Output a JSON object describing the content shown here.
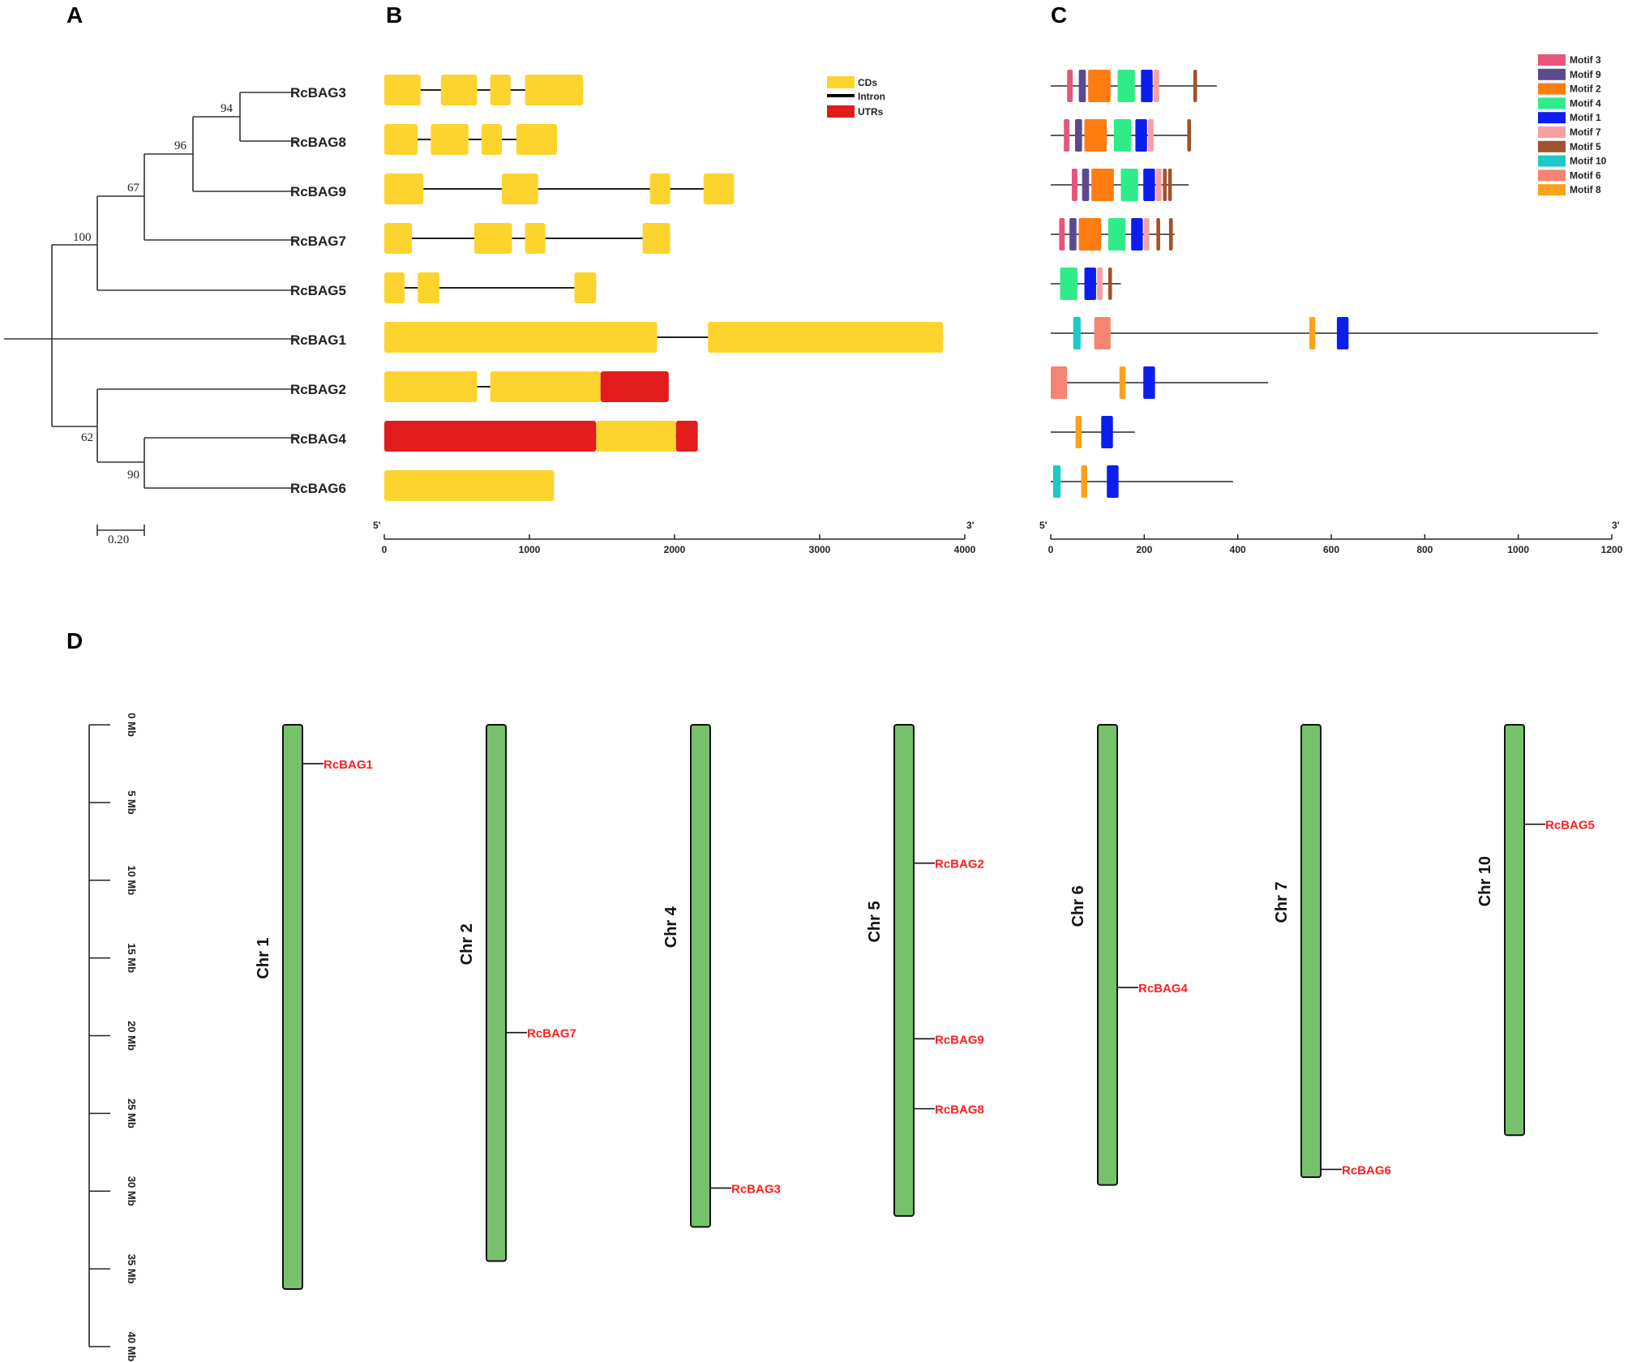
{
  "panels": {
    "a": "A",
    "b": "B",
    "c": "C",
    "d": "D"
  },
  "colors": {
    "cds": "#fdd42e",
    "utr": "#e21c1c",
    "intron": "#000000",
    "chromosome": "#77c16c",
    "gene_label": "#ff1f1f"
  },
  "chart_data": [
    {
      "type": "tree",
      "panel": "A",
      "title": "Phylogenetic tree",
      "leaves": [
        "RcBAG3",
        "RcBAG8",
        "RcBAG9",
        "RcBAG7",
        "RcBAG5",
        "RcBAG1",
        "RcBAG2",
        "RcBAG4",
        "RcBAG6"
      ],
      "bootstrap": [
        "94",
        "96",
        "67",
        "100",
        "62",
        "90"
      ],
      "scale_bar": "0.20"
    },
    {
      "type": "gene-structure",
      "panel": "B",
      "xlim": [
        0,
        4000
      ],
      "ticks": [
        0,
        1000,
        2000,
        3000,
        4000
      ],
      "end5": "5'",
      "end3": "3'",
      "legend": [
        {
          "label": "CDs",
          "kind": "cds"
        },
        {
          "label": "Intron",
          "kind": "intron"
        },
        {
          "label": "UTRs",
          "kind": "utr"
        }
      ],
      "genes": [
        {
          "name": "RcBAG3",
          "length": 1370,
          "features": [
            {
              "kind": "cds",
              "start": 0,
              "end": 250
            },
            {
              "kind": "cds",
              "start": 390,
              "end": 640
            },
            {
              "kind": "cds",
              "start": 730,
              "end": 870
            },
            {
              "kind": "cds",
              "start": 970,
              "end": 1370
            }
          ]
        },
        {
          "name": "RcBAG8",
          "length": 1190,
          "features": [
            {
              "kind": "cds",
              "start": 0,
              "end": 230
            },
            {
              "kind": "cds",
              "start": 320,
              "end": 580
            },
            {
              "kind": "cds",
              "start": 670,
              "end": 810
            },
            {
              "kind": "cds",
              "start": 910,
              "end": 1190
            }
          ]
        },
        {
          "name": "RcBAG9",
          "length": 2410,
          "features": [
            {
              "kind": "cds",
              "start": 0,
              "end": 270
            },
            {
              "kind": "cds",
              "start": 810,
              "end": 1060
            },
            {
              "kind": "cds",
              "start": 1830,
              "end": 1970
            },
            {
              "kind": "cds",
              "start": 2200,
              "end": 2410
            }
          ]
        },
        {
          "name": "RcBAG7",
          "length": 1970,
          "features": [
            {
              "kind": "cds",
              "start": 0,
              "end": 190
            },
            {
              "kind": "cds",
              "start": 620,
              "end": 880
            },
            {
              "kind": "cds",
              "start": 970,
              "end": 1110
            },
            {
              "kind": "cds",
              "start": 1780,
              "end": 1970
            }
          ]
        },
        {
          "name": "RcBAG5",
          "length": 1460,
          "features": [
            {
              "kind": "cds",
              "start": 0,
              "end": 140
            },
            {
              "kind": "cds",
              "start": 230,
              "end": 380
            },
            {
              "kind": "cds",
              "start": 1310,
              "end": 1460
            }
          ]
        },
        {
          "name": "RcBAG1",
          "length": 3850,
          "features": [
            {
              "kind": "cds",
              "start": 0,
              "end": 1880
            },
            {
              "kind": "cds",
              "start": 2230,
              "end": 3850
            }
          ]
        },
        {
          "name": "RcBAG2",
          "length": 1960,
          "features": [
            {
              "kind": "cds",
              "start": 0,
              "end": 640
            },
            {
              "kind": "cds",
              "start": 730,
              "end": 1490
            },
            {
              "kind": "utr",
              "start": 1490,
              "end": 1960
            }
          ]
        },
        {
          "name": "RcBAG4",
          "length": 2160,
          "features": [
            {
              "kind": "utr",
              "start": 0,
              "end": 1460
            },
            {
              "kind": "cds",
              "start": 1460,
              "end": 2010
            },
            {
              "kind": "utr",
              "start": 2010,
              "end": 2160
            }
          ]
        },
        {
          "name": "RcBAG6",
          "length": 1170,
          "features": [
            {
              "kind": "cds",
              "start": 0,
              "end": 1170
            }
          ]
        }
      ]
    },
    {
      "type": "motif",
      "panel": "C",
      "xlim": [
        0,
        1200
      ],
      "ticks": [
        0,
        200,
        400,
        600,
        800,
        1000,
        1200
      ],
      "end5": "5'",
      "end3": "3'",
      "legend": [
        {
          "label": "Motif 3",
          "color": "#e8557a"
        },
        {
          "label": "Motif 9",
          "color": "#5a4a8e"
        },
        {
          "label": "Motif 2",
          "color": "#ff7c11"
        },
        {
          "label": "Motif 4",
          "color": "#2fec88"
        },
        {
          "label": "Motif 1",
          "color": "#0b1eee"
        },
        {
          "label": "Motif 7",
          "color": "#f7a0a4"
        },
        {
          "label": "Motif 5",
          "color": "#a0522d"
        },
        {
          "label": "Motif 10",
          "color": "#1ec8c8"
        },
        {
          "label": "Motif 6",
          "color": "#f68472"
        },
        {
          "label": "Motif 8",
          "color": "#fca11c"
        }
      ],
      "proteins": [
        {
          "name": "RcBAG3",
          "length": 355,
          "motifs": [
            {
              "m": "Motif 3",
              "s": 35,
              "e": 47
            },
            {
              "m": "Motif 9",
              "s": 60,
              "e": 75
            },
            {
              "m": "Motif 2",
              "s": 80,
              "e": 128
            },
            {
              "m": "Motif 4",
              "s": 143,
              "e": 180
            },
            {
              "m": "Motif 1",
              "s": 193,
              "e": 218
            },
            {
              "m": "Motif 7",
              "s": 220,
              "e": 232
            },
            {
              "m": "Motif 5",
              "s": 305,
              "e": 313
            }
          ]
        },
        {
          "name": "RcBAG8",
          "length": 300,
          "motifs": [
            {
              "m": "Motif 3",
              "s": 28,
              "e": 40
            },
            {
              "m": "Motif 9",
              "s": 52,
              "e": 67
            },
            {
              "m": "Motif 2",
              "s": 72,
              "e": 120
            },
            {
              "m": "Motif 4",
              "s": 135,
              "e": 172
            },
            {
              "m": "Motif 1",
              "s": 181,
              "e": 206
            },
            {
              "m": "Motif 7",
              "s": 208,
              "e": 220
            },
            {
              "m": "Motif 5",
              "s": 292,
              "e": 300
            }
          ]
        },
        {
          "name": "RcBAG9",
          "length": 295,
          "motifs": [
            {
              "m": "Motif 3",
              "s": 45,
              "e": 57
            },
            {
              "m": "Motif 9",
              "s": 67,
              "e": 82
            },
            {
              "m": "Motif 2",
              "s": 87,
              "e": 135
            },
            {
              "m": "Motif 4",
              "s": 150,
              "e": 187
            },
            {
              "m": "Motif 1",
              "s": 198,
              "e": 223
            },
            {
              "m": "Motif 7",
              "s": 225,
              "e": 237
            },
            {
              "m": "Motif 5",
              "s": 240,
              "e": 248
            },
            {
              "m": "Motif 5",
              "s": 251,
              "e": 259
            }
          ]
        },
        {
          "name": "RcBAG7",
          "length": 265,
          "motifs": [
            {
              "m": "Motif 3",
              "s": 18,
              "e": 30
            },
            {
              "m": "Motif 9",
              "s": 40,
              "e": 55
            },
            {
              "m": "Motif 2",
              "s": 60,
              "e": 108
            },
            {
              "m": "Motif 4",
              "s": 123,
              "e": 160
            },
            {
              "m": "Motif 1",
              "s": 172,
              "e": 197
            },
            {
              "m": "Motif 7",
              "s": 199,
              "e": 211
            },
            {
              "m": "Motif 5",
              "s": 226,
              "e": 234
            },
            {
              "m": "Motif 5",
              "s": 253,
              "e": 261
            }
          ]
        },
        {
          "name": "RcBAG5",
          "length": 150,
          "motifs": [
            {
              "m": "Motif 4",
              "s": 20,
              "e": 57
            },
            {
              "m": "Motif 1",
              "s": 72,
              "e": 97
            },
            {
              "m": "Motif 7",
              "s": 99,
              "e": 111
            },
            {
              "m": "Motif 5",
              "s": 123,
              "e": 131
            }
          ]
        },
        {
          "name": "RcBAG1",
          "length": 1170,
          "motifs": [
            {
              "m": "Motif 10",
              "s": 48,
              "e": 64
            },
            {
              "m": "Motif 6",
              "s": 93,
              "e": 128
            },
            {
              "m": "Motif 8",
              "s": 553,
              "e": 566
            },
            {
              "m": "Motif 1",
              "s": 612,
              "e": 637
            }
          ]
        },
        {
          "name": "RcBAG2",
          "length": 465,
          "motifs": [
            {
              "m": "Motif 6",
              "s": 0,
              "e": 35
            },
            {
              "m": "Motif 8",
              "s": 147,
              "e": 160
            },
            {
              "m": "Motif 1",
              "s": 198,
              "e": 223
            }
          ]
        },
        {
          "name": "RcBAG4",
          "length": 180,
          "motifs": [
            {
              "m": "Motif 8",
              "s": 53,
              "e": 66
            },
            {
              "m": "Motif 1",
              "s": 108,
              "e": 133
            }
          ]
        },
        {
          "name": "RcBAG6",
          "length": 390,
          "motifs": [
            {
              "m": "Motif 10",
              "s": 5,
              "e": 21
            },
            {
              "m": "Motif 8",
              "s": 65,
              "e": 78
            },
            {
              "m": "Motif 1",
              "s": 120,
              "e": 145
            }
          ]
        }
      ]
    },
    {
      "type": "chromosome-map",
      "panel": "D",
      "ylim_mb": [
        0,
        40
      ],
      "scale_ticks": [
        "0 Mb",
        "5 Mb",
        "10 Mb",
        "15 Mb",
        "20 Mb",
        "25 Mb",
        "30 Mb",
        "35 Mb",
        "40 Mb"
      ],
      "chromosomes": [
        {
          "name": "Chr 1",
          "length_mb": 36.3,
          "genes": [
            {
              "name": "RcBAG1",
              "pos_mb": 2.5
            }
          ]
        },
        {
          "name": "Chr 2",
          "length_mb": 34.5,
          "genes": [
            {
              "name": "RcBAG7",
              "pos_mb": 19.8
            }
          ]
        },
        {
          "name": "Chr 4",
          "length_mb": 32.3,
          "genes": [
            {
              "name": "RcBAG3",
              "pos_mb": 29.8
            }
          ]
        },
        {
          "name": "Chr 5",
          "length_mb": 31.6,
          "genes": [
            {
              "name": "RcBAG2",
              "pos_mb": 8.9
            },
            {
              "name": "RcBAG9",
              "pos_mb": 20.2
            },
            {
              "name": "RcBAG8",
              "pos_mb": 24.7
            }
          ]
        },
        {
          "name": "Chr 6",
          "length_mb": 29.6,
          "genes": [
            {
              "name": "RcBAG4",
              "pos_mb": 16.9
            }
          ]
        },
        {
          "name": "Chr 7",
          "length_mb": 29.1,
          "genes": [
            {
              "name": "RcBAG6",
              "pos_mb": 28.6
            }
          ]
        },
        {
          "name": "Chr 10",
          "length_mb": 26.4,
          "genes": [
            {
              "name": "RcBAG5",
              "pos_mb": 6.4
            }
          ]
        }
      ]
    }
  ]
}
